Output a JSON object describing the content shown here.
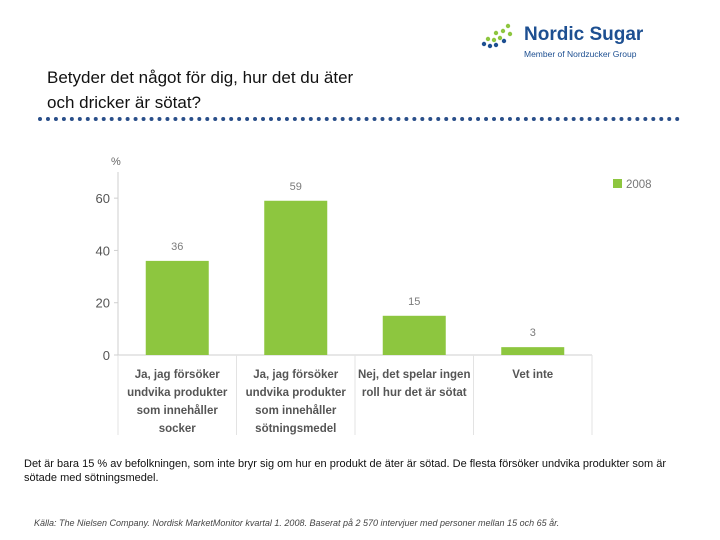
{
  "logo": {
    "name": "Nordic Sugar",
    "subtitle": "Member of Nordzucker Group",
    "icon": "nordic-sugar-logo-mark"
  },
  "title": {
    "line1": "Betyder det något för dig, hur det du äter",
    "line2": "och dricker är sötat?"
  },
  "chart_data": {
    "type": "bar",
    "title": "",
    "ylabel": "%",
    "xlabel": "",
    "ylim": [
      0,
      70
    ],
    "yticks": [
      0,
      20,
      40,
      60
    ],
    "grid": false,
    "legend_position": "top-right",
    "categories": [
      [
        "Ja, jag försöker",
        "undvika produkter",
        "som innehåller",
        "socker"
      ],
      [
        "Ja, jag försöker",
        "undvika produkter",
        "som innehåller",
        "sötningsmedel"
      ],
      [
        "Nej, det spelar ingen",
        "roll hur det är sötat"
      ],
      [
        "Vet inte"
      ]
    ],
    "series": [
      {
        "name": "2008",
        "values": [
          36,
          59,
          15,
          3
        ],
        "color": "#8dc63f"
      }
    ],
    "data_labels": [
      "36",
      "59",
      "15",
      "3"
    ],
    "label_color": "#7a7a7a",
    "axis_color": "#cfcfcf"
  },
  "note": "Det är bara 15 % av befolkningen, som inte bryr sig om hur en produkt de äter är sötad. De flesta försöker undvika produkter som är sötade med sötningsmedel.",
  "source": "Källa: The Nielsen Company. Nordisk MarketMonitor kvartal 1. 2008. Baserat på 2 570 intervjuer med personer mellan 15 och 65 år."
}
